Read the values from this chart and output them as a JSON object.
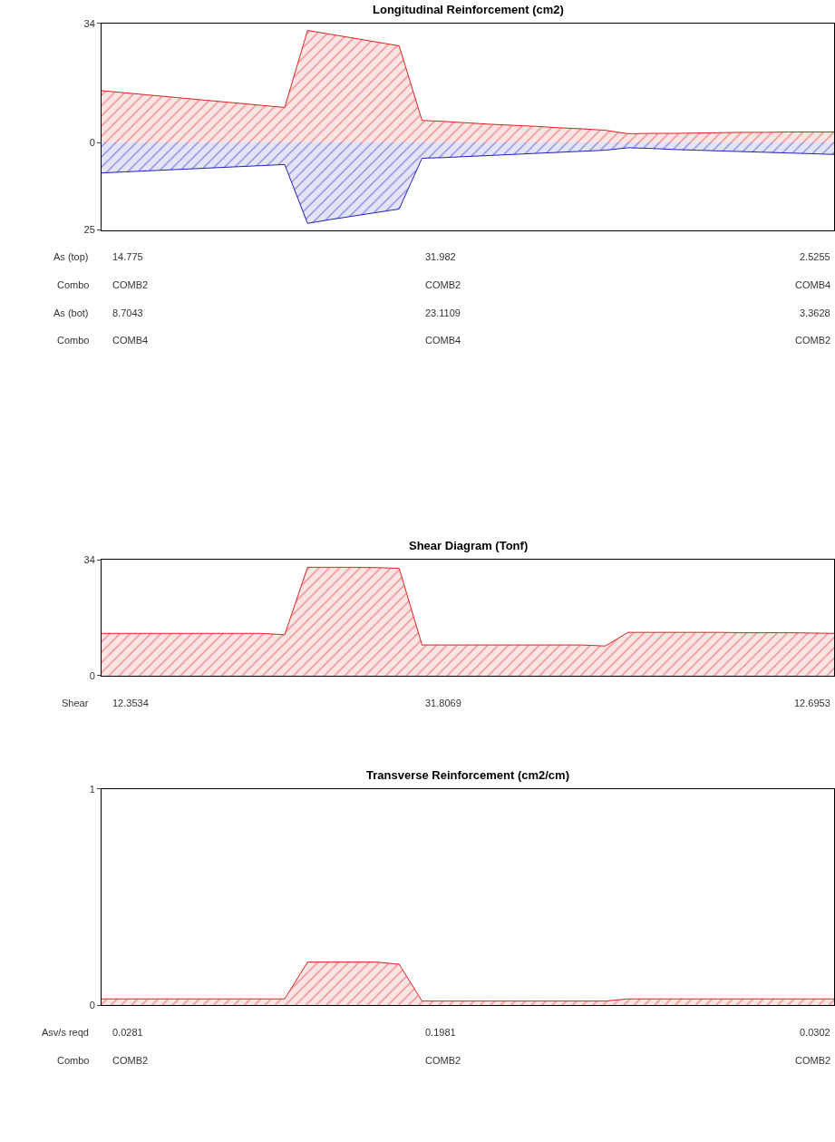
{
  "chart_data": [
    {
      "type": "area",
      "title": "Longitudinal Reinforcement (cm2)",
      "categories": [
        null,
        null,
        null,
        null,
        null,
        null,
        null,
        null,
        null,
        null,
        null,
        null,
        null,
        null,
        null,
        null,
        null,
        null,
        null,
        null,
        null,
        null,
        null,
        null,
        null,
        null,
        null,
        null,
        null,
        null,
        null,
        null,
        null
      ],
      "series": [
        {
          "color": "#e02020",
          "values": [
            14.8,
            14.2,
            13.6,
            13.0,
            12.4,
            11.8,
            11.2,
            10.6,
            10.0,
            32.0,
            30.9,
            29.8,
            28.7,
            27.6,
            6.3,
            6.0,
            5.6,
            5.2,
            4.9,
            4.6,
            4.2,
            3.9,
            3.5,
            2.5,
            2.6,
            2.6,
            2.7,
            2.8,
            2.9,
            2.9,
            3.0,
            3.0,
            3.0
          ]
        },
        {
          "color": "#2020c0",
          "values": [
            -8.7,
            -8.4,
            -8.1,
            -7.8,
            -7.5,
            -7.2,
            -6.9,
            -6.6,
            -6.3,
            -23.1,
            -22.0,
            -21.0,
            -20.0,
            -19.0,
            -4.5,
            -4.3,
            -4.0,
            -3.7,
            -3.4,
            -3.1,
            -2.8,
            -2.5,
            -2.2,
            -1.5,
            -1.7,
            -2.0,
            -2.2,
            -2.4,
            -2.6,
            -2.8,
            -3.0,
            -3.2,
            -3.4
          ]
        }
      ],
      "ylim": [
        -25,
        34
      ],
      "yticks": [
        {
          "value": -25,
          "label": "25"
        },
        0,
        34
      ],
      "tick_labels": "y",
      "annotations": [
        "As (top)",
        "14.775",
        "31.982",
        "2.5255",
        "Combo",
        "COMB2",
        "COMB2",
        "COMB4",
        "As (bot)",
        "8.7043",
        "23.1109",
        "3.3628",
        "Combo",
        "COMB4",
        "COMB4",
        "COMB2"
      ]
    },
    {
      "type": "area",
      "title": "Shear Diagram (Tonf)",
      "categories": [
        null,
        null,
        null,
        null,
        null,
        null,
        null,
        null,
        null,
        null,
        null,
        null,
        null,
        null,
        null,
        null,
        null,
        null,
        null,
        null,
        null,
        null,
        null,
        null,
        null,
        null,
        null,
        null,
        null,
        null,
        null,
        null,
        null
      ],
      "series": [
        {
          "color": "#e02020",
          "values": [
            12.4,
            12.4,
            12.4,
            12.4,
            12.4,
            12.4,
            12.4,
            12.4,
            12.0,
            31.8,
            31.8,
            31.8,
            31.7,
            31.5,
            9.0,
            9.0,
            9.0,
            9.0,
            9.0,
            9.0,
            9.0,
            9.0,
            8.7,
            12.7,
            12.7,
            12.7,
            12.7,
            12.7,
            12.6,
            12.6,
            12.6,
            12.5,
            12.4
          ]
        }
      ],
      "ylim": [
        0,
        34
      ],
      "yticks": [
        0,
        34
      ],
      "tick_labels": "y",
      "annotations": [
        "Shear",
        "12.3534",
        "31.8069",
        "12.6953"
      ]
    },
    {
      "type": "area",
      "title": "Transverse Reinforcement (cm2/cm)",
      "categories": [
        null,
        null,
        null,
        null,
        null,
        null,
        null,
        null,
        null,
        null,
        null,
        null,
        null,
        null,
        null,
        null,
        null,
        null,
        null,
        null,
        null,
        null,
        null,
        null,
        null,
        null,
        null,
        null,
        null,
        null,
        null,
        null,
        null
      ],
      "series": [
        {
          "color": "#e02020",
          "values": [
            0.03,
            0.03,
            0.03,
            0.03,
            0.03,
            0.03,
            0.03,
            0.03,
            0.03,
            0.2,
            0.2,
            0.2,
            0.2,
            0.19,
            0.02,
            0.02,
            0.02,
            0.02,
            0.02,
            0.02,
            0.02,
            0.02,
            0.02,
            0.03,
            0.03,
            0.03,
            0.03,
            0.03,
            0.03,
            0.03,
            0.03,
            0.03,
            0.03
          ]
        }
      ],
      "ylim": [
        0,
        1
      ],
      "yticks": [
        0,
        1
      ],
      "tick_labels": "y",
      "annotations": [
        "Asv/s reqd",
        "0.0281",
        "0.1981",
        "0.0302",
        "Combo",
        "COMB2",
        "COMB2",
        "COMB2"
      ]
    }
  ]
}
